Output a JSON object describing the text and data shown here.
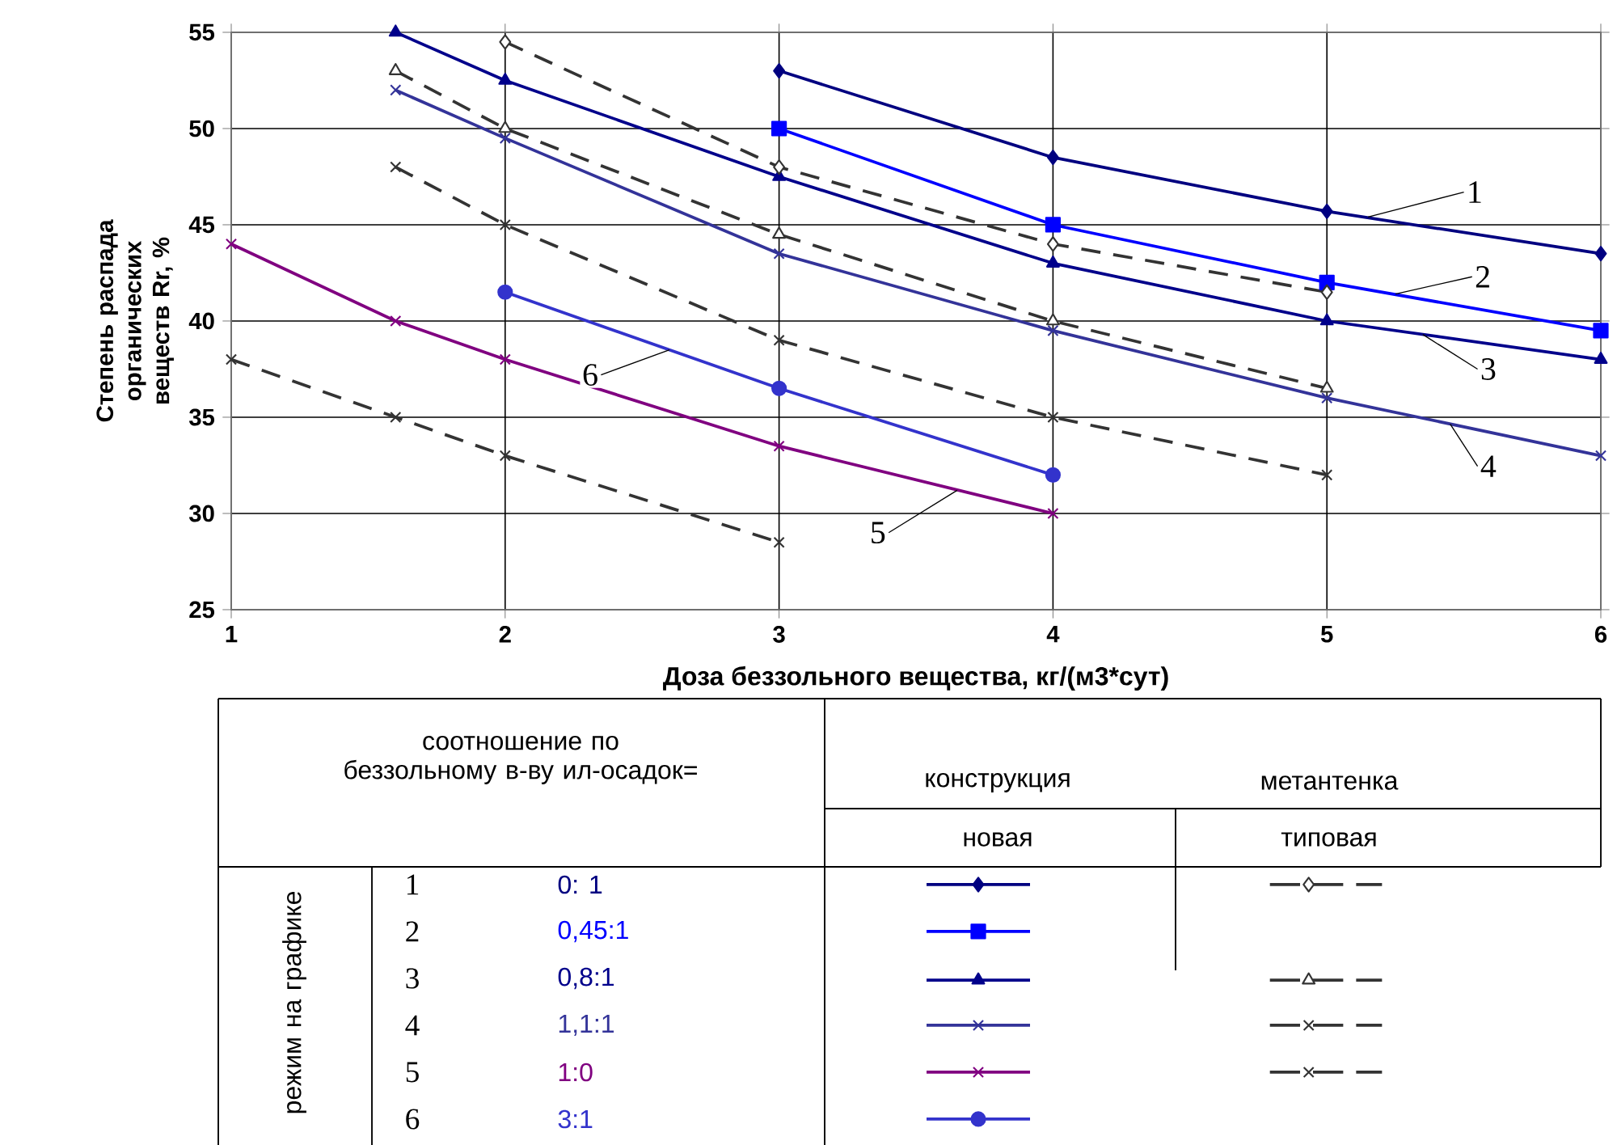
{
  "chart_data": {
    "type": "line",
    "xlabel": "Доза беззольного вещества, кг/(м3*сут)",
    "ylabel": "Степень распада органических веществ Rr, %",
    "xlim": [
      1,
      6
    ],
    "ylim": [
      25,
      55
    ],
    "xticks": [
      1,
      2,
      3,
      4,
      5,
      6
    ],
    "yticks": [
      25,
      30,
      35,
      40,
      45,
      50,
      55
    ],
    "grid": true,
    "legend": "bottom",
    "series": [
      {
        "name": "0: 1",
        "color": "#000080",
        "marker": "diamond",
        "line_style": "solid",
        "x": [
          3,
          4,
          5,
          6
        ],
        "values": [
          53,
          48.5,
          45.7,
          43.5
        ]
      },
      {
        "name": "0,45:1",
        "color": "#0000ff",
        "marker": "square",
        "line_style": "solid",
        "x": [
          3,
          4,
          5,
          6
        ],
        "values": [
          50,
          45,
          42,
          39.5
        ]
      },
      {
        "name": "0,8:1",
        "color": "#00008b",
        "marker": "triangle",
        "line_style": "solid",
        "x": [
          1.6,
          2,
          3,
          4,
          5,
          6
        ],
        "values": [
          55,
          52.5,
          47.5,
          43,
          40,
          38
        ]
      },
      {
        "name": "1,1:1",
        "color": "#333399",
        "marker": "cross",
        "line_style": "solid",
        "x": [
          1.6,
          2,
          3,
          4,
          5,
          6
        ],
        "values": [
          52,
          49.5,
          43.5,
          39.5,
          36,
          33
        ]
      },
      {
        "name": "1:0",
        "color": "#800080",
        "marker": "cross",
        "line_style": "solid",
        "x": [
          1,
          1.6,
          2,
          3,
          4
        ],
        "values": [
          44,
          40,
          38,
          33.5,
          30
        ]
      },
      {
        "name": "3:1",
        "color": "#3333cc",
        "marker": "circle",
        "line_style": "solid",
        "x": [
          2,
          3,
          4
        ],
        "values": [
          41.5,
          36.5,
          32
        ]
      },
      {
        "color": "#333333",
        "marker": "diamond",
        "line_style": "dashed",
        "x": [
          2,
          3,
          4,
          5
        ],
        "values": [
          54.5,
          48,
          44,
          41.5
        ]
      },
      {
        "color": "#333333",
        "marker": "triangle",
        "line_style": "dashed",
        "x": [
          1.6,
          2,
          3,
          4,
          5
        ],
        "values": [
          53,
          50,
          44.5,
          40,
          36.5
        ]
      },
      {
        "color": "#333333",
        "marker": "cross",
        "line_style": "dashed",
        "x": [
          1.6,
          2,
          3,
          4,
          5
        ],
        "values": [
          48,
          45,
          39,
          35,
          32
        ]
      },
      {
        "color": "#333333",
        "marker": "cross",
        "line_style": "dashed",
        "x": [
          1,
          1.6,
          2,
          3
        ],
        "values": [
          38,
          35,
          33,
          28.5
        ]
      }
    ],
    "annotations": [
      {
        "text": "1",
        "x": 5.15,
        "y": 45.4
      },
      {
        "text": "2",
        "x": 5.25,
        "y": 41.4
      },
      {
        "text": "3",
        "x": 5.35,
        "y": 39.3
      },
      {
        "text": "4",
        "x": 5.45,
        "y": 34.65
      },
      {
        "text": "5",
        "x": 3.65,
        "y": 31.2
      },
      {
        "text": "6",
        "x": 2.6,
        "y": 38.5
      },
      "соотношение по беззольному в-ву ил-осадок=",
      "конструкция",
      "метантенка",
      "новая",
      "типовая",
      "режим на графике",
      "1",
      "2",
      "3",
      "4",
      "5",
      "6"
    ]
  }
}
